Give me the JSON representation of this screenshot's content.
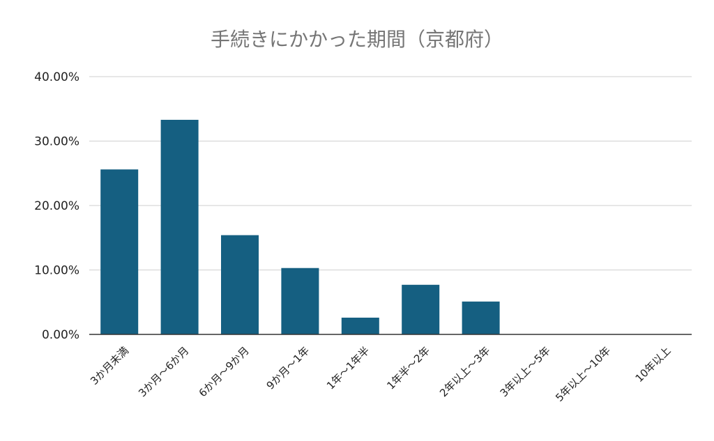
{
  "chart_data": {
    "type": "bar",
    "title": "手続きにかかった期間（京都府）",
    "xlabel": "",
    "ylabel": "",
    "categories": [
      "3か月未満",
      "3か月～6か月",
      "6か月～9か月",
      "9か月～1年",
      "1年～1年半",
      "1年半～2年",
      "2年以上～3年",
      "3年以上～5年",
      "5年以上～10年",
      "10年以上"
    ],
    "values": [
      25.6,
      33.3,
      15.4,
      10.3,
      2.6,
      7.7,
      5.1,
      0,
      0,
      0
    ],
    "ylim": [
      0,
      40
    ],
    "yticks": [
      "0.00%",
      "10.00%",
      "20.00%",
      "30.00%",
      "40.00%"
    ],
    "ytick_values": [
      0,
      10,
      20,
      30,
      40
    ],
    "grid": true,
    "legend": "none",
    "bar_color": "#155f81"
  }
}
